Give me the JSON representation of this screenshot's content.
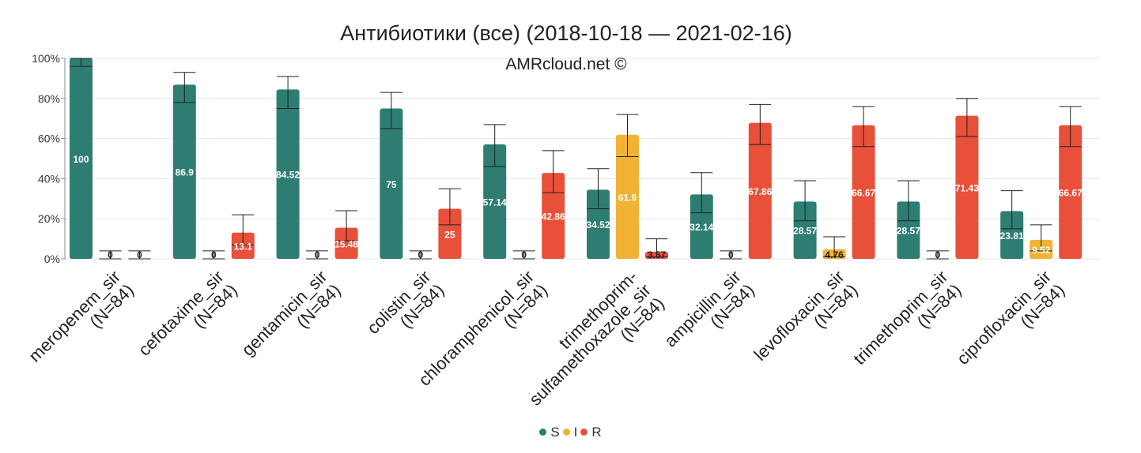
{
  "chart_data": {
    "type": "bar",
    "title": "Антибиотики (все) (2018-10-18 — 2021-02-16)",
    "subtitle": "AMRcloud.net ©",
    "ylim": [
      0,
      100
    ],
    "yticks": [
      "0%",
      "20%",
      "40%",
      "60%",
      "80%",
      "100%"
    ],
    "grid": true,
    "legend_position": "bottom-center",
    "categories": [
      [
        "meropenem_sir",
        "(N=84)"
      ],
      [
        "cefotaxime_sir",
        "(N=84)"
      ],
      [
        "gentamicin_sir",
        "(N=84)"
      ],
      [
        "colistin_sir",
        "(N=84)"
      ],
      [
        "chloramphenicol_sir",
        "(N=84)"
      ],
      [
        "trimethoprim-",
        "sulfamethoxazole_sir",
        "(N=84)"
      ],
      [
        "ampicillin_sir",
        "(N=84)"
      ],
      [
        "levofloxacin_sir",
        "(N=84)"
      ],
      [
        "trimethoprim_sir",
        "(N=84)"
      ],
      [
        "ciprofloxacin_sir",
        "(N=84)"
      ]
    ],
    "series": [
      {
        "name": "S",
        "color": "#2e7d72",
        "values": [
          100,
          86.9,
          84.52,
          75,
          57.14,
          34.52,
          32.14,
          28.57,
          28.57,
          23.81
        ],
        "labels": [
          "100",
          "86.9",
          "84.52",
          "75",
          "57.14",
          "34.52",
          "32.14",
          "28.57",
          "28.57",
          "23.81"
        ],
        "err_low": [
          96,
          78,
          75,
          65,
          46,
          25,
          23,
          19,
          19,
          15
        ],
        "err_high": [
          100,
          93,
          91,
          83,
          67,
          45,
          43,
          39,
          39,
          34
        ]
      },
      {
        "name": "I",
        "color": "#f2b233",
        "values": [
          0,
          0,
          0,
          0,
          0,
          61.9,
          0,
          4.76,
          0,
          9.52
        ],
        "labels": [
          "0",
          "0",
          "0",
          "0",
          "0",
          "61.9",
          "0",
          "4.76",
          "0",
          "9.52"
        ],
        "err_low": [
          0,
          0,
          0,
          0,
          0,
          51,
          0,
          1,
          0,
          4
        ],
        "err_high": [
          4,
          4,
          4,
          4,
          4,
          72,
          4,
          11,
          4,
          17
        ]
      },
      {
        "name": "R",
        "color": "#e8503a",
        "values": [
          0,
          13.1,
          15.48,
          25,
          42.86,
          3.57,
          67.86,
          66.67,
          71.43,
          66.67
        ],
        "labels": [
          "0",
          "13.1",
          "15.48",
          "25",
          "42.86",
          "3.57",
          "67.86",
          "66.67",
          "71.43",
          "66.67"
        ],
        "err_low": [
          0,
          7,
          9,
          17,
          33,
          1,
          57,
          56,
          61,
          56
        ],
        "err_high": [
          4,
          22,
          24,
          35,
          54,
          10,
          77,
          76,
          80,
          76
        ]
      }
    ]
  }
}
